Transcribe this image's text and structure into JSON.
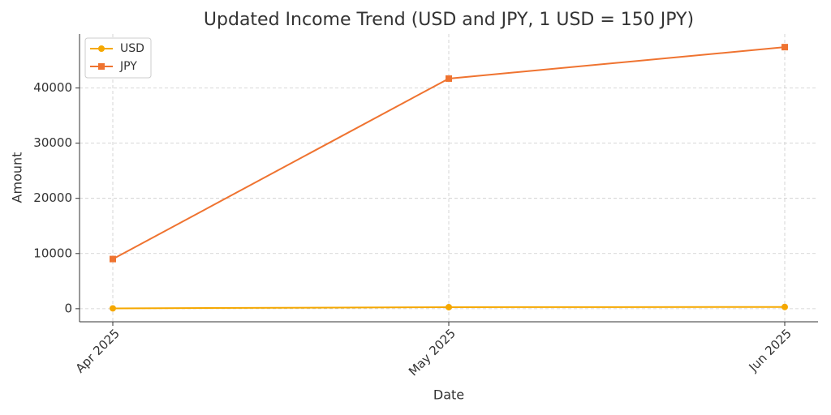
{
  "chart_data": {
    "type": "line",
    "title": "Updated Income Trend (USD and JPY, 1 USD = 150 JPY)",
    "x_label": "Date",
    "y_label": "Amount",
    "categories": [
      "Apr 2025",
      "May 2025",
      "Jun 2025"
    ],
    "series": [
      {
        "name": "USD",
        "color": "#f5a800",
        "marker": "circle",
        "values": [
          60,
          278,
          316
        ]
      },
      {
        "name": "JPY",
        "color": "#ef7330",
        "marker": "square",
        "values": [
          9000,
          41700,
          47400
        ]
      }
    ],
    "ylim": [
      -2370,
      49770
    ],
    "yticks": [
      0,
      10000,
      20000,
      30000,
      40000
    ],
    "grid": true,
    "legend": "upper left"
  }
}
